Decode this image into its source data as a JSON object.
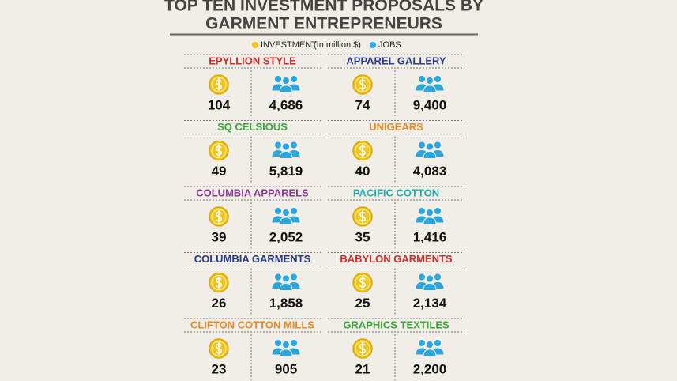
{
  "header": {
    "title_line1": "TOP TEN INVESTMENT PROPOSALS BY",
    "title_line2": "GARMENT ENTREPRENEURS"
  },
  "legend": {
    "investment": {
      "label": "INVESTMENT",
      "unit": "(In million $)",
      "color": "#f2c418"
    },
    "jobs": {
      "label": "JOBS",
      "color": "#2aa5de"
    }
  },
  "companies": [
    {
      "name": "EPYLLION STYLE",
      "color": "#d22b2b",
      "investment": "104",
      "jobs": "4,686"
    },
    {
      "name": "APPAREL GALLERY",
      "color": "#2c3a8a",
      "investment": "74",
      "jobs": "9,400"
    },
    {
      "name": "SQ CELSIOUS",
      "color": "#3aa63a",
      "investment": "49",
      "jobs": "5,819"
    },
    {
      "name": "UNIGEARS",
      "color": "#e58a2a",
      "investment": "40",
      "jobs": "4,083"
    },
    {
      "name": "COLUMBIA APPARELS",
      "color": "#8b3a94",
      "investment": "39",
      "jobs": "2,052"
    },
    {
      "name": "PACIFIC COTTON",
      "color": "#22b0b0",
      "investment": "35",
      "jobs": "1,416"
    },
    {
      "name": "COLUMBIA GARMENTS",
      "color": "#2c3a8a",
      "investment": "26",
      "jobs": "1,858"
    },
    {
      "name": "BABYLON GARMENTS",
      "color": "#d22b2b",
      "investment": "25",
      "jobs": "2,134"
    },
    {
      "name": "CLIFTON COTTON MILLS",
      "color": "#e58a2a",
      "investment": "23",
      "jobs": "905"
    },
    {
      "name": "GRAPHICS TEXTILES",
      "color": "#3aa63a",
      "investment": "21",
      "jobs": "2,200"
    }
  ]
}
